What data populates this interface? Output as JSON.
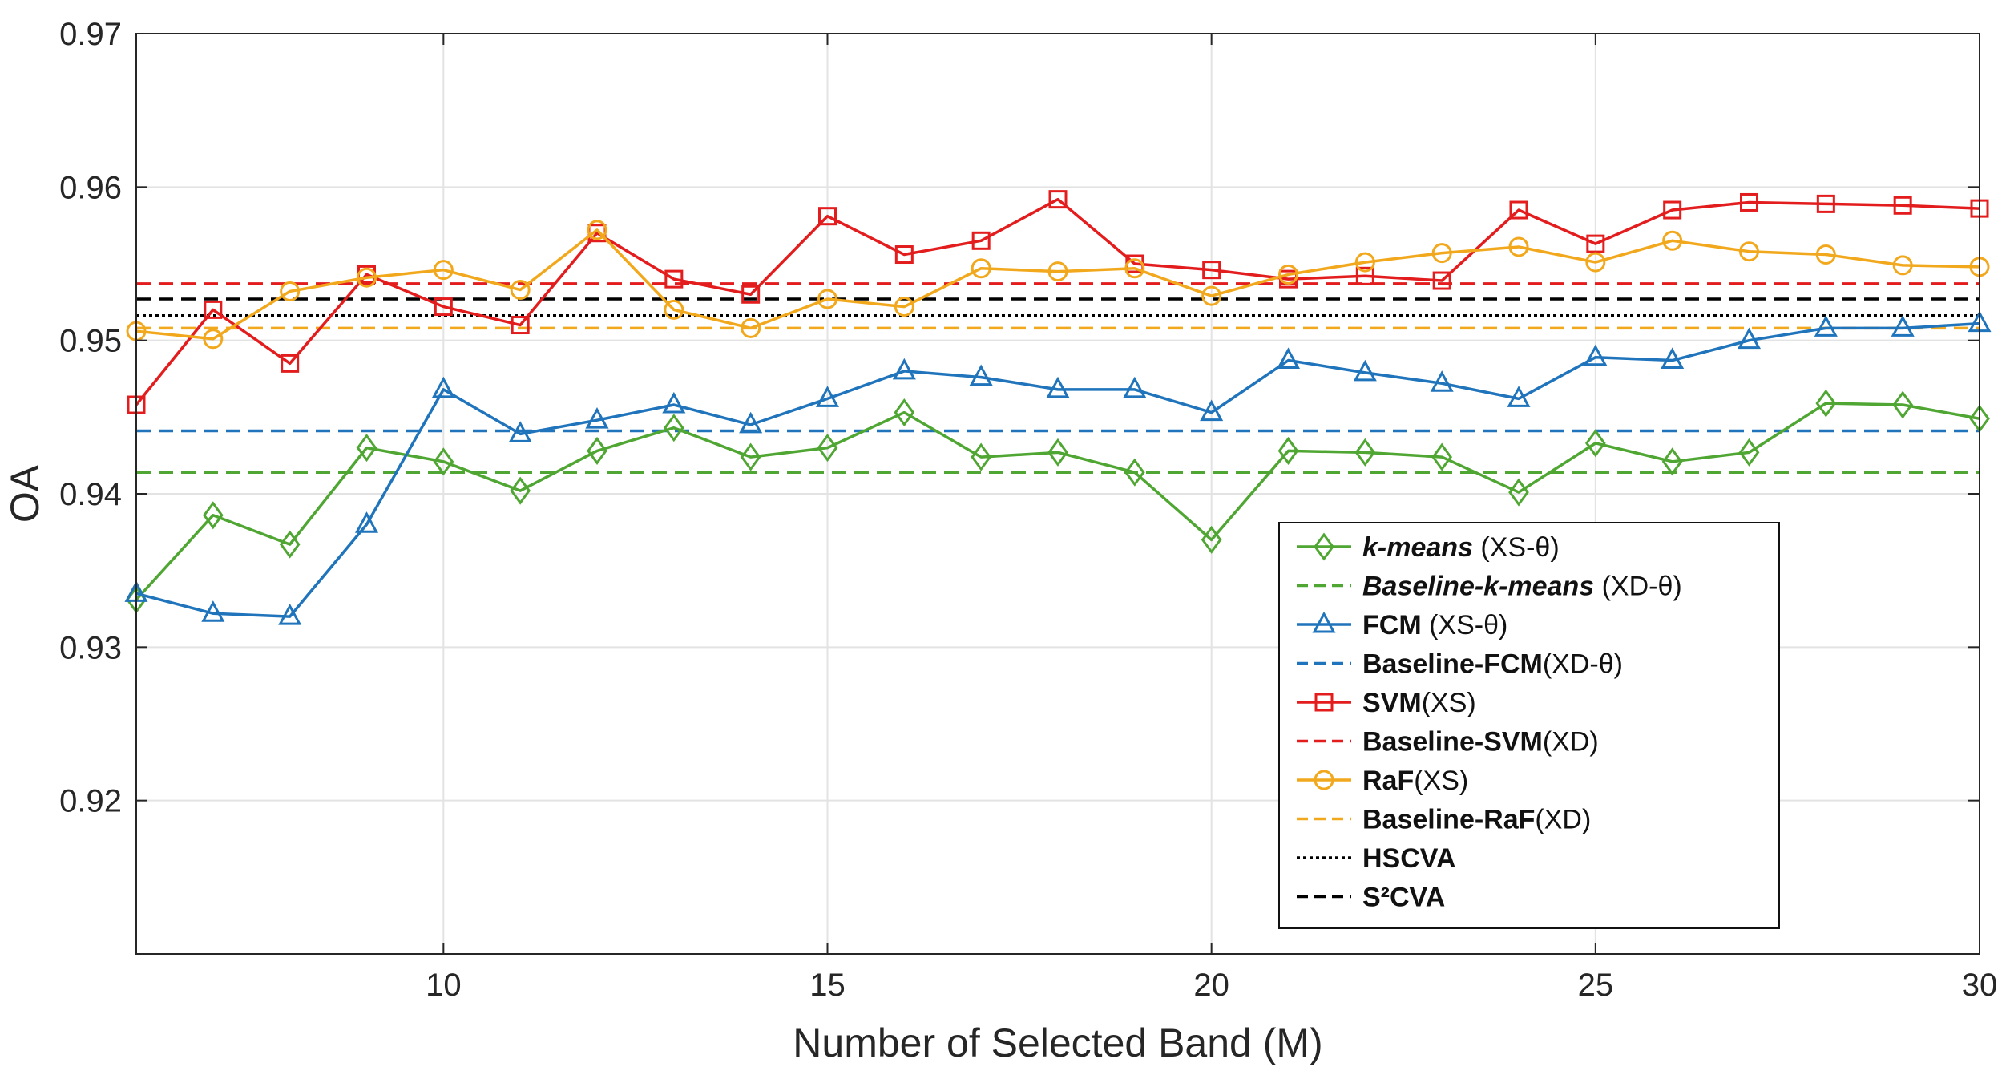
{
  "chart_data": {
    "type": "line",
    "title": "",
    "xlabel": "Number of Selected Band (M)",
    "ylabel": "OA",
    "xlim": [
      6,
      30
    ],
    "ylim": [
      0.91,
      0.97
    ],
    "xticks": [
      10,
      15,
      20,
      25,
      30
    ],
    "yticks": [
      0.92,
      0.93,
      0.94,
      0.95,
      0.96,
      0.97
    ],
    "ytick_labels": [
      "0.92",
      "0.93",
      "0.94",
      "0.95",
      "0.96",
      "0.97"
    ],
    "grid": true,
    "legend_position": "bottom-right",
    "x": [
      6,
      7,
      8,
      9,
      10,
      11,
      12,
      13,
      14,
      15,
      16,
      17,
      18,
      19,
      20,
      21,
      22,
      23,
      24,
      25,
      26,
      27,
      28,
      29,
      30
    ],
    "series": [
      {
        "name": "k-means (XS-θ)",
        "label_main": "k-means",
        "label_rest": " (XS-θ)",
        "color": "#4fa632",
        "marker": "diamond",
        "style": "solid",
        "values": [
          0.9331,
          0.9386,
          0.9367,
          0.943,
          0.9421,
          0.9402,
          0.9428,
          0.9443,
          0.9424,
          0.943,
          0.9453,
          0.9424,
          0.9427,
          0.9414,
          0.937,
          0.9428,
          0.9427,
          0.9424,
          0.9401,
          0.9433,
          0.9421,
          0.9427,
          0.9459,
          0.9458,
          0.9449
        ]
      },
      {
        "name": "FCM (XS-θ)",
        "label_main": "FCM",
        "label_rest": " (XS-θ)",
        "color": "#1f74bb",
        "marker": "triangle",
        "style": "solid",
        "values": [
          0.9335,
          0.9322,
          0.932,
          0.938,
          0.9468,
          0.9439,
          0.9448,
          0.9458,
          0.9445,
          0.9462,
          0.948,
          0.9476,
          0.9468,
          0.9468,
          0.9453,
          0.9487,
          0.9479,
          0.9472,
          0.9462,
          0.9489,
          0.9487,
          0.95,
          0.9508,
          0.9508,
          0.9511
        ]
      },
      {
        "name": "SVM(XS)",
        "label_main": "SVM",
        "label_rest": "(XS)",
        "color": "#e31d1d",
        "marker": "square",
        "style": "solid",
        "values": [
          0.9458,
          0.952,
          0.9485,
          0.9543,
          0.9522,
          0.951,
          0.957,
          0.954,
          0.953,
          0.9581,
          0.9556,
          0.9565,
          0.9592,
          0.955,
          0.9546,
          0.954,
          0.9542,
          0.9539,
          0.9585,
          0.9563,
          0.9585,
          0.959,
          0.9589,
          0.9588,
          0.9586
        ]
      },
      {
        "name": "RaF(XS)",
        "label_main": "RaF",
        "label_rest": "(XS)",
        "color": "#f2a81d",
        "marker": "circle",
        "style": "solid",
        "values": [
          0.9506,
          0.9501,
          0.9532,
          0.9541,
          0.9546,
          0.9533,
          0.9572,
          0.952,
          0.9508,
          0.9527,
          0.9522,
          0.9547,
          0.9545,
          0.9547,
          0.9529,
          0.9543,
          0.9551,
          0.9557,
          0.9561,
          0.9551,
          0.9565,
          0.9558,
          0.9556,
          0.9549,
          0.9548
        ]
      }
    ],
    "baselines": [
      {
        "name": "Baseline-k-means (XD-θ)",
        "label_main": "Baseline-k-means",
        "label_rest": " (XD-θ)",
        "color": "#4fa632",
        "style": "dashed",
        "value": 0.9414
      },
      {
        "name": "Baseline-FCM(XD-θ)",
        "label_main": "Baseline-FCM",
        "label_rest": "(XD-θ)",
        "color": "#1f74bb",
        "style": "dashed",
        "value": 0.9441
      },
      {
        "name": "Baseline-SVM(XD)",
        "label_main": "Baseline-SVM",
        "label_rest": "(XD)",
        "color": "#e31d1d",
        "style": "dashed",
        "value": 0.9537
      },
      {
        "name": "Baseline-RaF(XD)",
        "label_main": "Baseline-RaF",
        "label_rest": "(XD)",
        "color": "#f2a81d",
        "style": "dashed",
        "value": 0.9508
      },
      {
        "name": "HSCVA",
        "label_main": "HSCVA",
        "label_rest": "",
        "color": "#000000",
        "style": "dotted",
        "value": 0.9516
      },
      {
        "name": "S2CVA",
        "label_main": "S²CVA",
        "label_rest": "",
        "color": "#000000",
        "style": "dashed",
        "value": 0.9527
      }
    ],
    "legend_order": [
      "k-means (XS-θ)",
      "Baseline-k-means (XD-θ)",
      "FCM (XS-θ)",
      "Baseline-FCM(XD-θ)",
      "SVM(XS)",
      "Baseline-SVM(XD)",
      "RaF(XS)",
      "Baseline-RaF(XD)",
      "HSCVA",
      "S2CVA"
    ]
  }
}
